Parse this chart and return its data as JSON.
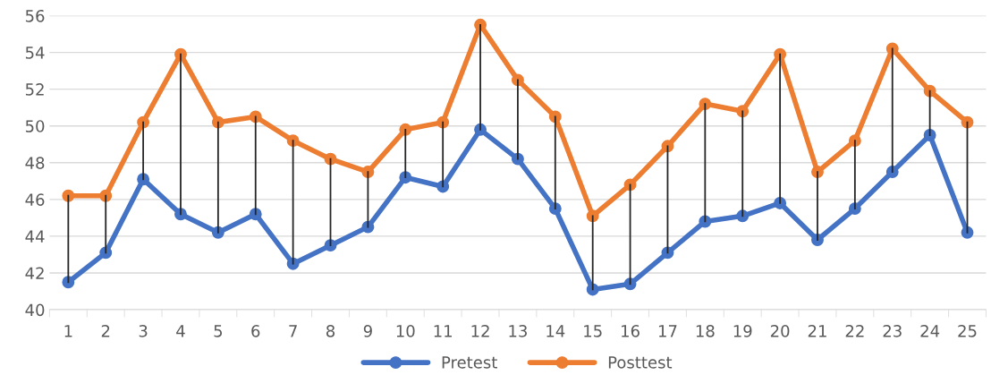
{
  "chart_data": {
    "type": "line",
    "categories": [
      "1",
      "2",
      "3",
      "4",
      "5",
      "6",
      "7",
      "8",
      "9",
      "10",
      "11",
      "12",
      "13",
      "14",
      "15",
      "16",
      "17",
      "18",
      "19",
      "20",
      "21",
      "22",
      "23",
      "24",
      "25"
    ],
    "series": [
      {
        "name": "Pretest",
        "color": "#4472c4",
        "values": [
          41.5,
          43.1,
          47.1,
          45.2,
          44.2,
          45.2,
          42.5,
          43.5,
          44.5,
          47.2,
          46.7,
          49.8,
          48.2,
          45.5,
          41.1,
          41.4,
          43.1,
          44.8,
          45.1,
          45.8,
          43.8,
          45.5,
          47.5,
          49.5,
          44.2
        ],
        "errors": [
          [
            41.5,
            46.2
          ],
          [
            43.1,
            46.2
          ],
          [
            47.1,
            50.2
          ],
          [
            45.2,
            53.9
          ],
          [
            44.2,
            50.2
          ],
          [
            45.2,
            50.5
          ],
          [
            42.5,
            49.2
          ],
          [
            43.5,
            48.2
          ],
          [
            44.5,
            47.5
          ],
          [
            47.2,
            49.8
          ],
          [
            46.7,
            50.2
          ],
          [
            49.8,
            55.5
          ],
          [
            48.2,
            52.5
          ],
          [
            45.5,
            50.5
          ],
          [
            41.1,
            45.1
          ],
          [
            41.4,
            46.8
          ],
          [
            43.1,
            48.9
          ],
          [
            44.8,
            51.2
          ],
          [
            45.1,
            50.8
          ],
          [
            45.8,
            53.9
          ],
          [
            43.8,
            47.5
          ],
          [
            45.5,
            49.2
          ],
          [
            47.5,
            54.2
          ],
          [
            49.5,
            51.9
          ],
          [
            44.2,
            50.2
          ]
        ]
      },
      {
        "name": "Posttest",
        "color": "#ed7d31",
        "values": [
          46.2,
          46.2,
          50.2,
          53.9,
          50.2,
          50.5,
          49.2,
          48.2,
          47.5,
          49.8,
          50.2,
          55.5,
          52.5,
          50.5,
          45.1,
          46.8,
          48.9,
          51.2,
          50.8,
          53.9,
          47.5,
          49.2,
          54.2,
          51.9,
          50.2
        ]
      }
    ],
    "ylim": [
      40,
      56
    ],
    "yticks": [
      40,
      42,
      44,
      46,
      48,
      50,
      52,
      54,
      56
    ],
    "grid": "y",
    "legend": "bottom",
    "marker": "circle",
    "line_style": "solid"
  }
}
